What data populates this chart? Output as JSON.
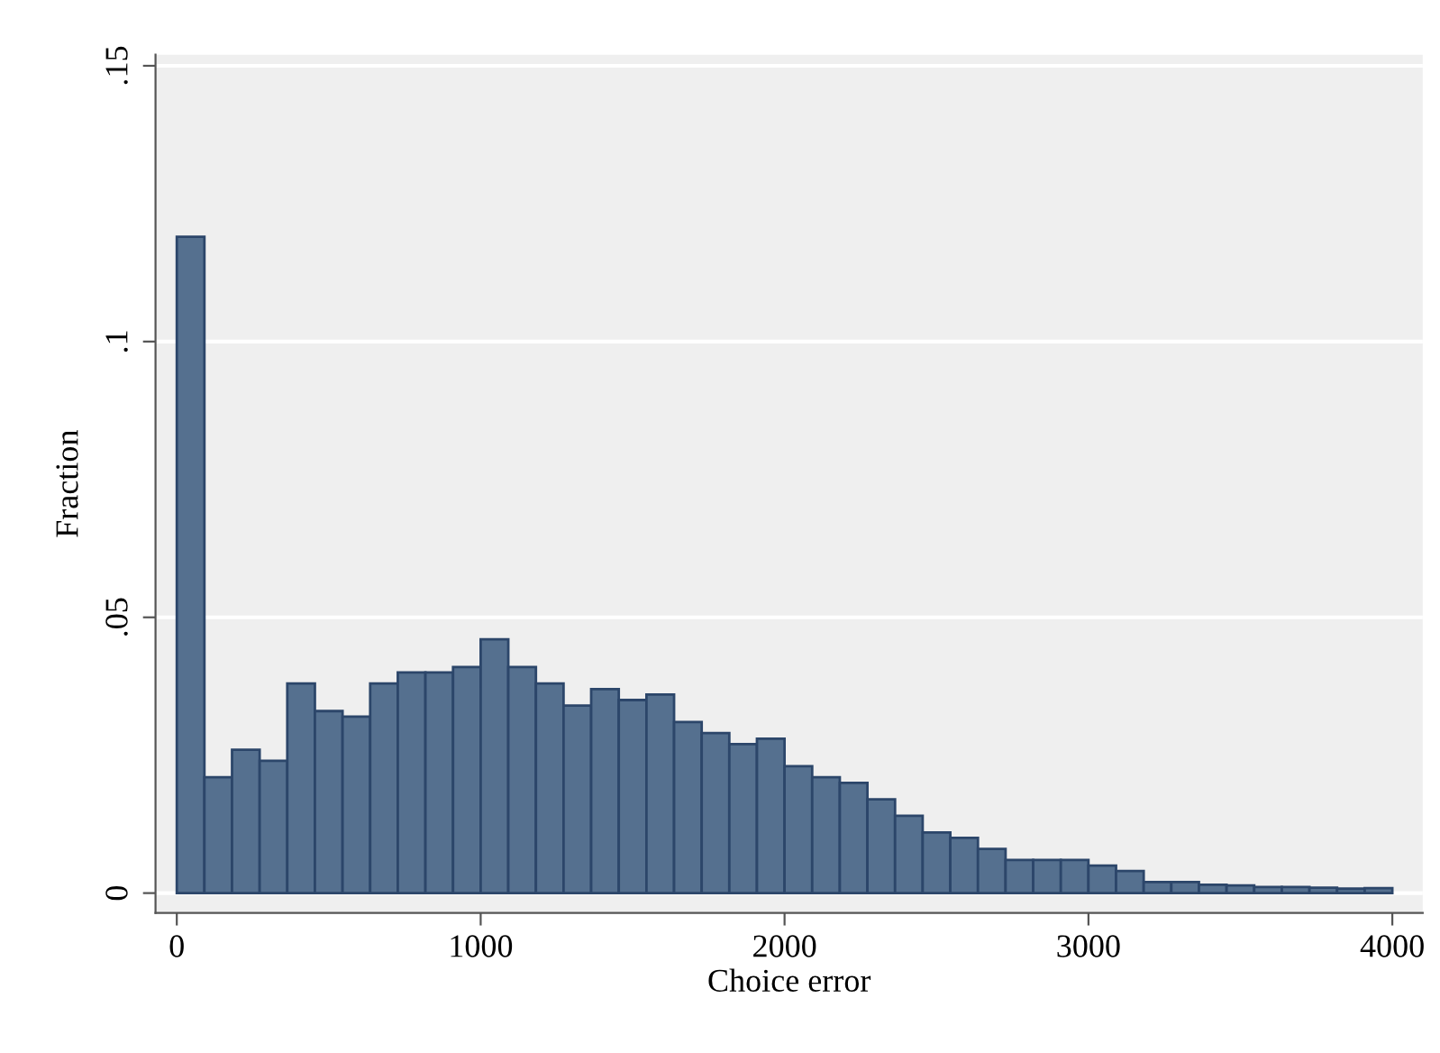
{
  "chart_data": {
    "type": "histogram",
    "xlabel": "Choice error",
    "ylabel": "Fraction",
    "color": "#55708f",
    "bins": [
      0,
      90.9,
      181.8,
      272.7,
      363.6,
      454.5,
      545.5,
      636.4,
      727.3,
      818.2,
      909.1,
      1000,
      1090.9,
      1181.8,
      1272.7,
      1363.6,
      1454.5,
      1545.5,
      1636.4,
      1727.3,
      1818.2,
      1909.1,
      2000,
      2090.9,
      2181.8,
      2272.7,
      2363.6,
      2454.5,
      2545.5,
      2636.4,
      2727.3,
      2818.2,
      2909.1,
      3000,
      3090.9,
      3181.8,
      3272.7,
      3363.6,
      3454.5,
      3545.5,
      3636.4,
      3727.3,
      3818.2,
      3909.1,
      4000
    ],
    "values": [
      0.119,
      0.021,
      0.026,
      0.024,
      0.038,
      0.033,
      0.032,
      0.038,
      0.04,
      0.04,
      0.041,
      0.046,
      0.041,
      0.038,
      0.034,
      0.037,
      0.035,
      0.036,
      0.031,
      0.029,
      0.027,
      0.028,
      0.023,
      0.021,
      0.02,
      0.017,
      0.014,
      0.011,
      0.01,
      0.008,
      0.006,
      0.006,
      0.006,
      0.005,
      0.004,
      0.002,
      0.002,
      0.0015,
      0.0014,
      0.0011,
      0.0011,
      0.001,
      0.0008,
      0.0009
    ],
    "xlim": [
      -70,
      4100
    ],
    "ylim": [
      -0.0036,
      0.152
    ],
    "xticks": [
      0,
      1000,
      2000,
      3000,
      4000
    ],
    "yticks": [
      {
        "value": 0,
        "label": "0"
      },
      {
        "value": 0.05,
        "label": ".05"
      },
      {
        "value": 0.1,
        "label": ".1"
      },
      {
        "value": 0.15,
        "label": ".15"
      }
    ],
    "grid": "y"
  }
}
